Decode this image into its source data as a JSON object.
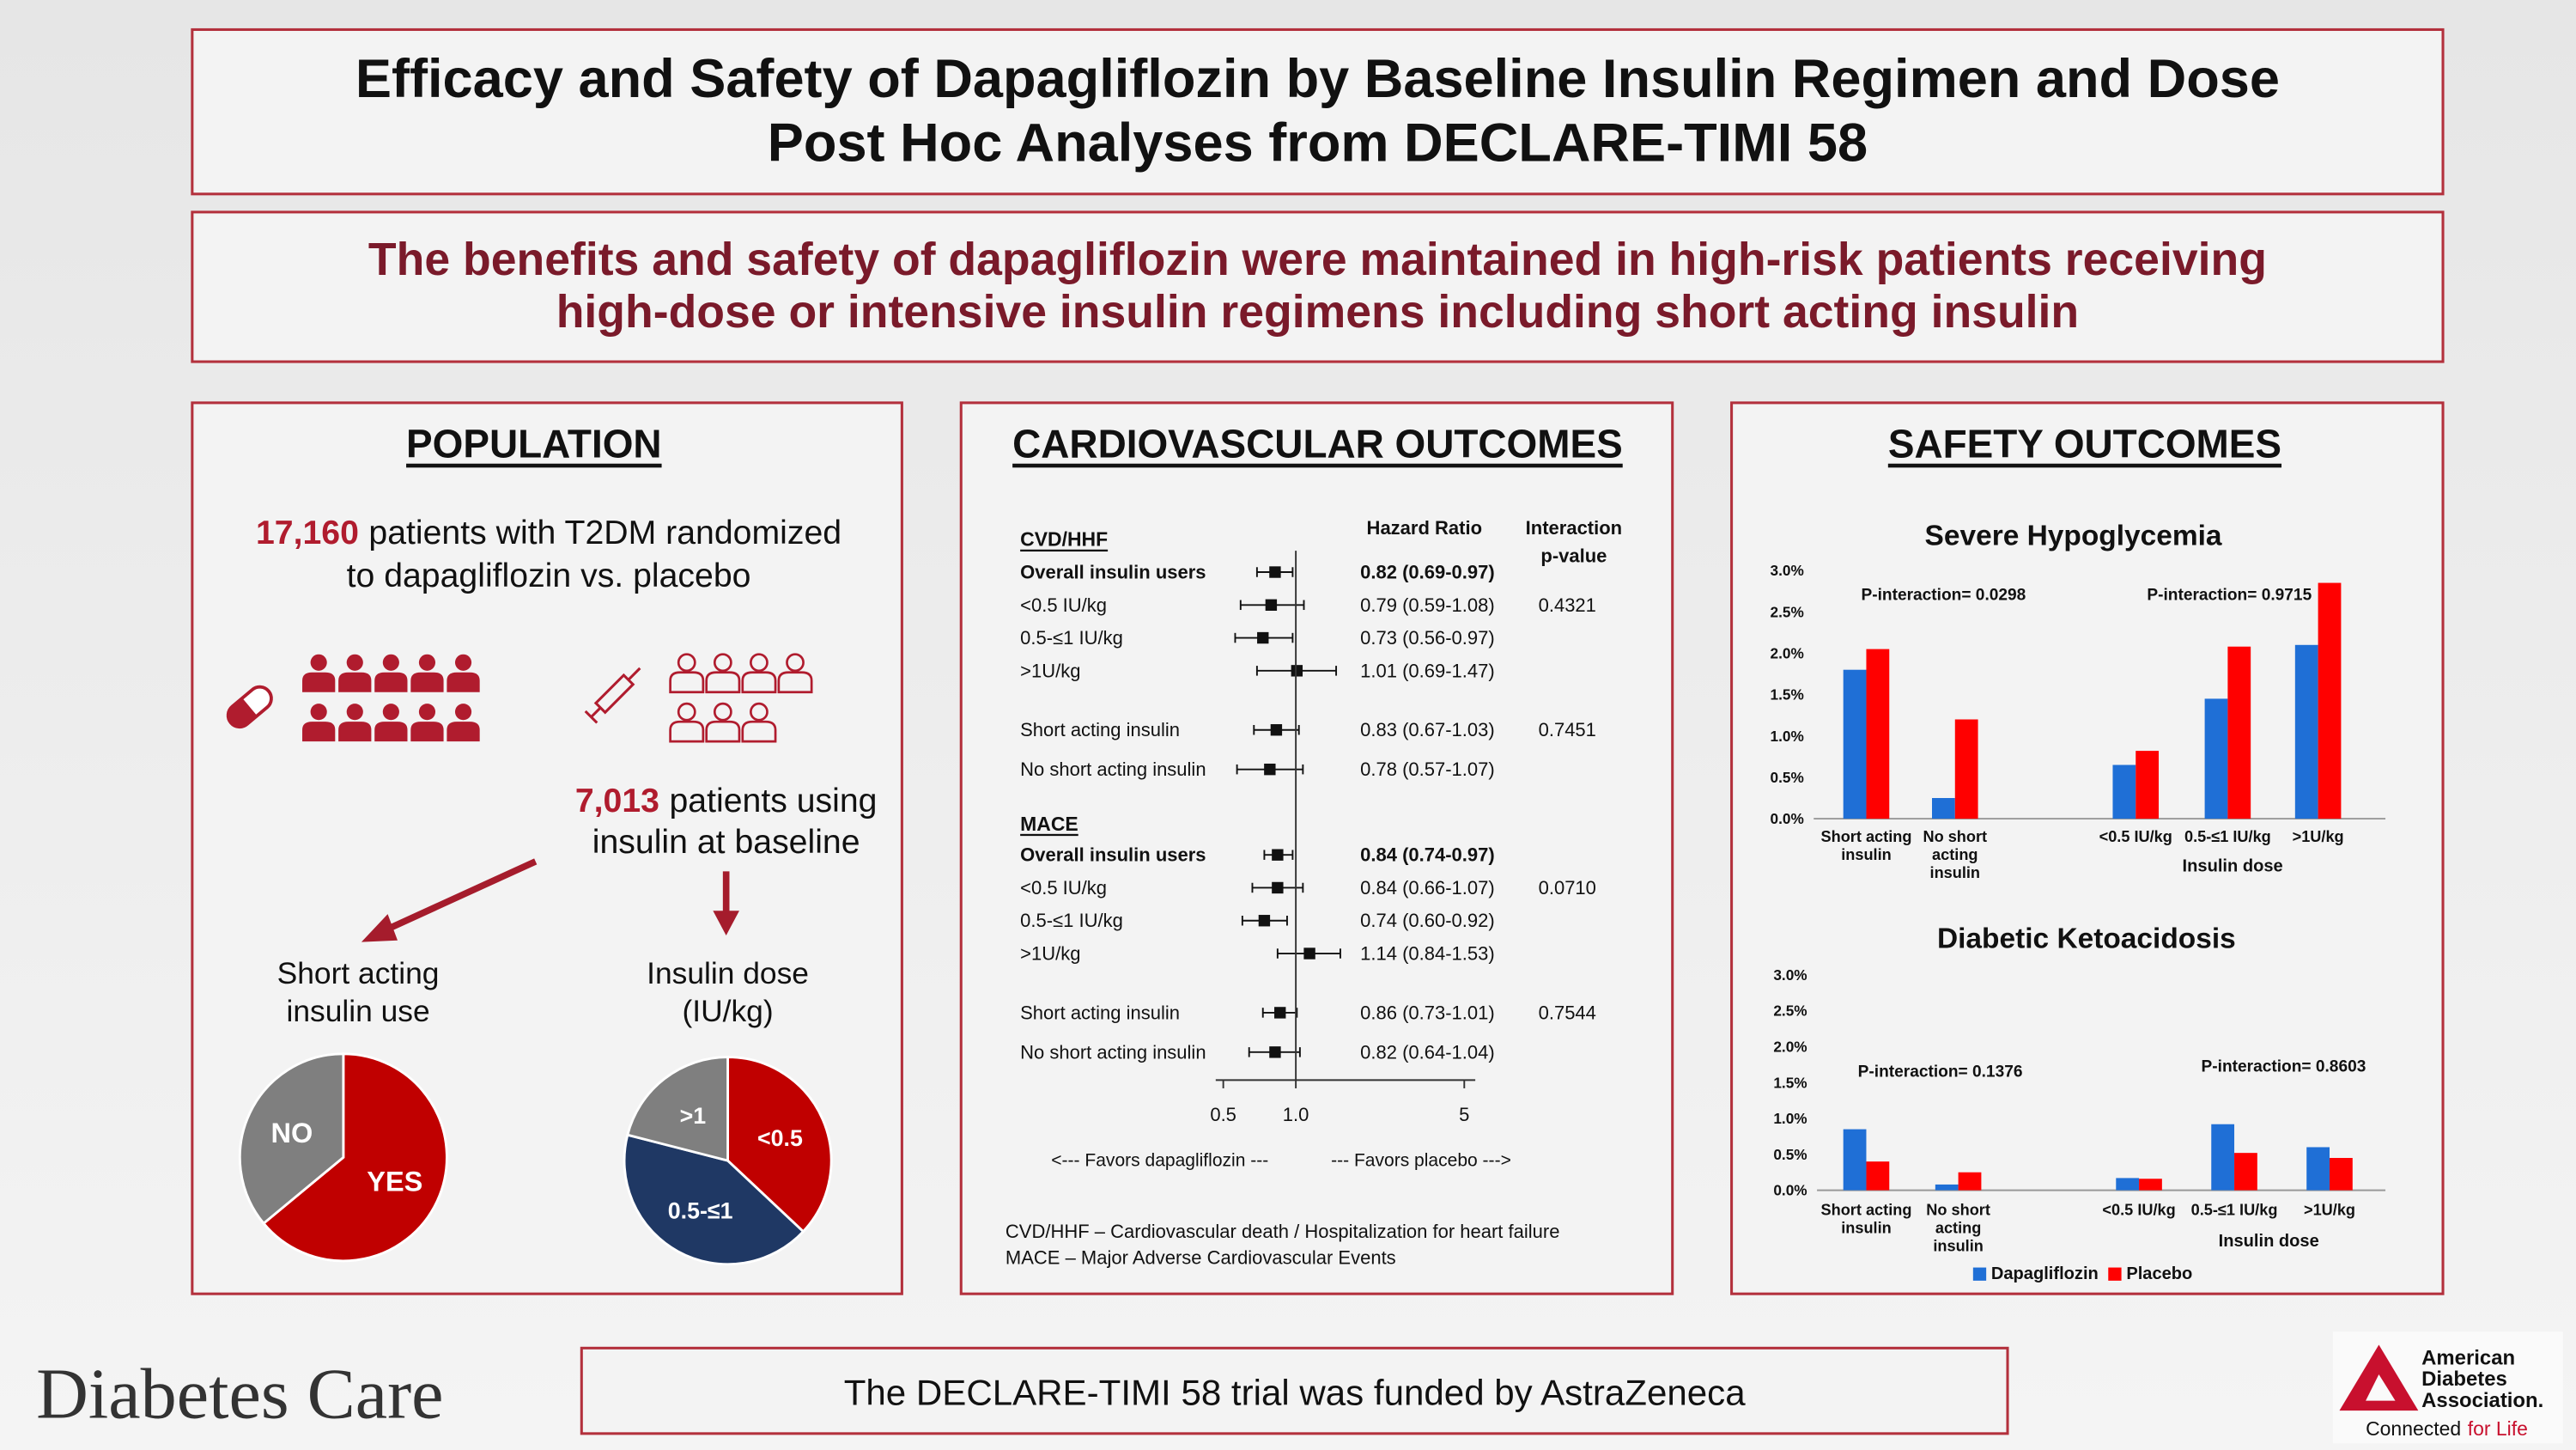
{
  "header": {
    "title": "Efficacy and Safety of Dapagliflozin by Baseline Insulin Regimen and Dose",
    "subtitle": "Post Hoc Analyses from DECLARE-TIMI 58"
  },
  "key_message": [
    "The benefits and safety of dapagliflozin were maintained in high-risk patients receiving",
    "high-dose or intensive insulin regimens including short acting insulin"
  ],
  "population": {
    "heading": "POPULATION",
    "randomized": {
      "count": "17,160",
      "lines": [
        "patients with T2DM randomized",
        "to dapagliflozin vs. placebo"
      ]
    },
    "insulin": {
      "count": "7,013",
      "lines": [
        "patients using",
        "insulin at baseline"
      ]
    }
  },
  "cardiovascular": {
    "heading": "CARDIOVASCULAR OUTCOMES",
    "footnotes": [
      "CVD/HHF – Cardiovascular death / Hospitalization for heart failure",
      "MACE – Major Adverse Cardiovascular Events"
    ]
  },
  "safety": {
    "heading": "SAFETY OUTCOMES"
  },
  "chart_data": [
    {
      "type": "pie",
      "title": [
        "Short acting",
        "insulin use"
      ],
      "categories": [
        "YES",
        "NO"
      ],
      "values": [
        64,
        36
      ],
      "colors": [
        "#c00000",
        "#7f7f7f"
      ]
    },
    {
      "type": "pie",
      "title": [
        "Insulin dose",
        "(IU/kg)"
      ],
      "categories": [
        "<0.5",
        "0.5-≤1",
        ">1"
      ],
      "values": [
        37,
        42,
        21
      ],
      "colors": [
        "#c00000",
        "#1f3864",
        "#7f7f7f"
      ]
    },
    {
      "type": "forest",
      "hr_header": "Hazard Ratio",
      "p_header": [
        "Interaction",
        "p-value"
      ],
      "log_scale": true,
      "color": "#111111",
      "xlim": [
        0.43,
        6.2
      ],
      "xticks": [
        0.5,
        {
          "value": 1,
          "label": "1.0"
        },
        5
      ],
      "annotations": [
        "<--- Favors dapagliflozin ---",
        "--- Favors placebo --->"
      ],
      "groups": [
        {
          "name": "CVD/HHF",
          "rows": [
            {
              "label": "Overall insulin users",
              "bold": true,
              "hr": 0.82,
              "lo": 0.69,
              "hi": 0.97,
              "value_label": "0.82 (0.69-0.97)"
            },
            {
              "label": "<0.5 IU/kg",
              "hr": 0.79,
              "lo": 0.59,
              "hi": 1.08,
              "value_label": "0.79 (0.59-1.08)",
              "p": "0.4321"
            },
            {
              "label": "0.5-≤1 IU/kg",
              "hr": 0.73,
              "lo": 0.56,
              "hi": 0.97,
              "value_label": "0.73 (0.56-0.97)"
            },
            {
              "label": ">1U/kg",
              "hr": 1.01,
              "lo": 0.69,
              "hi": 1.47,
              "value_label": "1.01 (0.69-1.47)"
            },
            {
              "label": "Short acting insulin",
              "hr": 0.83,
              "lo": 0.67,
              "hi": 1.03,
              "value_label": "0.83 (0.67-1.03)",
              "p": "0.7451"
            },
            {
              "label": "No short acting insulin",
              "hr": 0.78,
              "lo": 0.57,
              "hi": 1.07,
              "value_label": "0.78 (0.57-1.07)"
            }
          ]
        },
        {
          "name": "MACE",
          "rows": [
            {
              "label": "Overall insulin users",
              "bold": true,
              "hr": 0.84,
              "lo": 0.74,
              "hi": 0.97,
              "value_label": "0.84 (0.74-0.97)"
            },
            {
              "label": "<0.5 IU/kg",
              "hr": 0.84,
              "lo": 0.66,
              "hi": 1.07,
              "value_label": "0.84 (0.66-1.07)",
              "p": "0.0710"
            },
            {
              "label": "0.5-≤1 IU/kg",
              "hr": 0.74,
              "lo": 0.6,
              "hi": 0.92,
              "value_label": "0.74 (0.60-0.92)"
            },
            {
              "label": ">1U/kg",
              "hr": 1.14,
              "lo": 0.84,
              "hi": 1.53,
              "value_label": "1.14 (0.84-1.53)"
            },
            {
              "label": "Short acting insulin",
              "hr": 0.86,
              "lo": 0.73,
              "hi": 1.01,
              "value_label": "0.86 (0.73-1.01)",
              "p": "0.7544"
            },
            {
              "label": "No short acting insulin",
              "hr": 0.82,
              "lo": 0.64,
              "hi": 1.04,
              "value_label": "0.82 (0.64-1.04)"
            }
          ]
        }
      ]
    },
    {
      "type": "bar",
      "title": "Severe Hypoglycemia",
      "categories": [
        "Short acting insulin",
        "No short acting insulin",
        "<0.5 IU/kg",
        "0.5-≤1 IU/kg",
        ">1U/kg"
      ],
      "group_label": "Insulin dose",
      "series": [
        {
          "color": "#1f6fd6",
          "values": [
            1.8,
            0.25,
            0.65,
            1.45,
            2.1
          ]
        },
        {
          "color": "#ff0000",
          "values": [
            2.05,
            1.2,
            0.82,
            2.08,
            2.85
          ]
        }
      ],
      "ylim": [
        0,
        3
      ],
      "yticks": [
        {
          "value": 0,
          "label": "0.0%"
        },
        {
          "value": 0.5,
          "label": "0.5%"
        },
        {
          "value": 1,
          "label": "1.0%"
        },
        {
          "value": 1.5,
          "label": "1.5%"
        },
        {
          "value": 2,
          "label": "2.0%"
        },
        {
          "value": 2.5,
          "label": "2.5%"
        },
        {
          "value": 3,
          "label": "3.0%"
        }
      ],
      "annotations": [
        "P-interaction= 0.0298",
        "P-interaction= 0.9715"
      ]
    },
    {
      "type": "bar",
      "title": "Diabetic Ketoacidosis",
      "categories": [
        "Short acting insulin",
        "No short acting insulin",
        "<0.5 IU/kg",
        "0.5-≤1 IU/kg",
        ">1U/kg"
      ],
      "group_label": "Insulin dose",
      "series": [
        {
          "name": "Dapagliflozin",
          "color": "#1f6fd6",
          "values": [
            0.85,
            0.08,
            0.17,
            0.92,
            0.6
          ]
        },
        {
          "name": "Placebo",
          "color": "#ff0000",
          "values": [
            0.4,
            0.25,
            0.16,
            0.52,
            0.45
          ]
        }
      ],
      "ylim": [
        0,
        3
      ],
      "yticks": [
        {
          "value": 0,
          "label": "0.0%"
        },
        {
          "value": 0.5,
          "label": "0.5%"
        },
        {
          "value": 1,
          "label": "1.0%"
        },
        {
          "value": 1.5,
          "label": "1.5%"
        },
        {
          "value": 2,
          "label": "2.0%"
        },
        {
          "value": 2.5,
          "label": "2.5%"
        },
        {
          "value": 3,
          "label": "3.0%"
        }
      ],
      "annotations": [
        "P-interaction= 0.1376",
        "P-interaction= 0.8603"
      ],
      "legend": "bottom"
    }
  ],
  "footer": {
    "journal": "Diabetes Care",
    "funding": "The DECLARE-TIMI 58 trial was funded by AstraZeneca",
    "ada": [
      "American",
      "Diabetes",
      "Association."
    ],
    "tagline": [
      "Connected",
      "for Life"
    ]
  }
}
